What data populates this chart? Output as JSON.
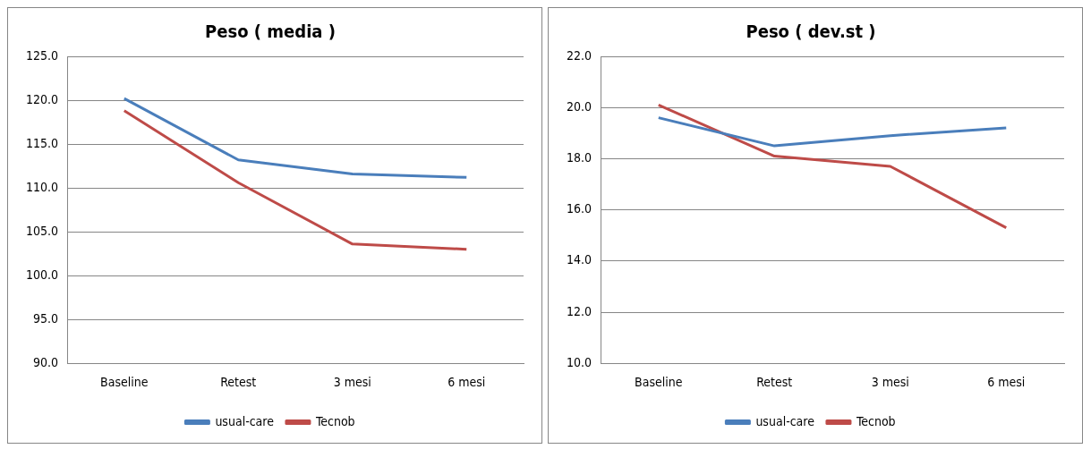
{
  "chart_data": [
    {
      "type": "line",
      "title": "Peso ( media )",
      "categories": [
        "Baseline",
        "Retest",
        "3 mesi",
        "6 mesi"
      ],
      "series": [
        {
          "name": "usual-care",
          "color": "#4a7ebb",
          "values": [
            120.2,
            113.2,
            111.6,
            111.2
          ]
        },
        {
          "name": "Tecnob",
          "color": "#be4b48",
          "values": [
            118.8,
            110.6,
            103.6,
            103.0
          ]
        }
      ],
      "ylim": [
        90,
        125
      ],
      "yticks": [
        {
          "value": 90,
          "label": "90.0"
        },
        {
          "value": 95,
          "label": "95.0"
        },
        {
          "value": 100,
          "label": "100.0"
        },
        {
          "value": 105,
          "label": "105.0"
        },
        {
          "value": 110,
          "label": "110.0"
        },
        {
          "value": 115,
          "label": "115.0"
        },
        {
          "value": 120,
          "label": "120.0"
        },
        {
          "value": 125,
          "label": "125.0"
        }
      ],
      "grid": "y",
      "legend": "bottom",
      "marker": "none"
    },
    {
      "type": "line",
      "title": "Peso ( dev.st )",
      "categories": [
        "Baseline",
        "Retest",
        "3 mesi",
        "6 mesi"
      ],
      "series": [
        {
          "name": "usual-care",
          "color": "#4a7ebb",
          "values": [
            19.6,
            18.5,
            18.9,
            19.2
          ]
        },
        {
          "name": "Tecnob",
          "color": "#be4b48",
          "values": [
            20.1,
            18.1,
            17.7,
            15.3
          ]
        }
      ],
      "ylim": [
        10,
        22
      ],
      "yticks": [
        {
          "value": 10,
          "label": "10.0"
        },
        {
          "value": 12,
          "label": "12.0"
        },
        {
          "value": 14,
          "label": "14.0"
        },
        {
          "value": 16,
          "label": "16.0"
        },
        {
          "value": 18,
          "label": "18.0"
        },
        {
          "value": 20,
          "label": "20.0"
        },
        {
          "value": 22,
          "label": "22.0"
        }
      ],
      "grid": "y",
      "legend": "bottom",
      "marker": "none"
    }
  ]
}
